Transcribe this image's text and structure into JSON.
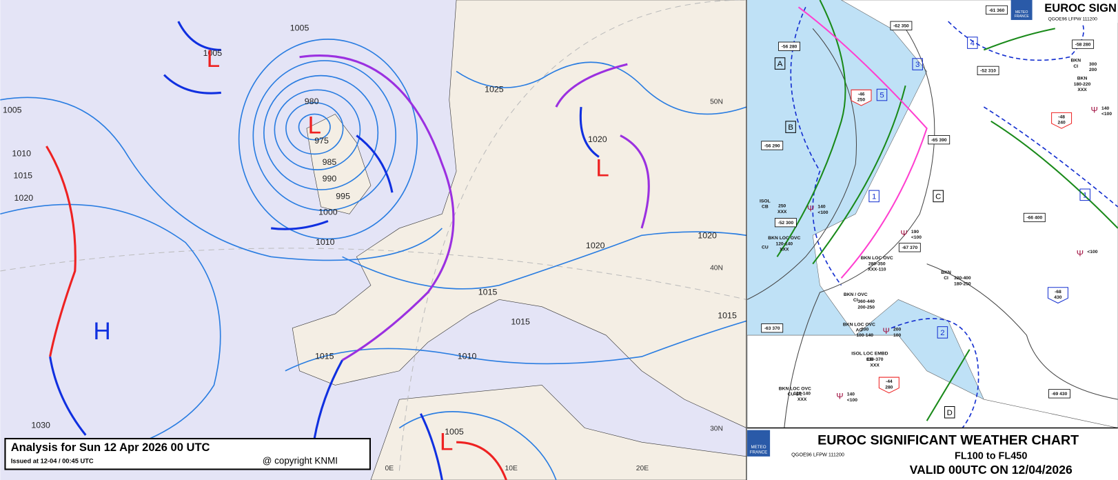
{
  "weather_analysis": {
    "isobar_labels": [
      "1005",
      "1005",
      "980",
      "975",
      "985",
      "990",
      "995",
      "1000",
      "1010",
      "1005",
      "1010",
      "1015",
      "1020",
      "1025",
      "1020",
      "1020",
      "1020",
      "1015",
      "1015",
      "1015",
      "1015",
      "1010",
      "1030",
      "1005"
    ],
    "pressure_centers": [
      "L",
      "L",
      "L",
      "L",
      "H"
    ],
    "graticule_labels": [
      "50N",
      "40N",
      "30N",
      "0E",
      "10E",
      "20E"
    ],
    "caption": {
      "title": "Analysis for Sun 12 Apr 2026 00 UTC",
      "issued": "Issued at 12-04 / 00:45 UTC",
      "copyright": "@ copyright KNMI"
    }
  },
  "sigwx_chart": {
    "header": {
      "title": "EUROC SIGN",
      "code": "QGOE96 LFPW 111200",
      "logo": [
        "METEO",
        "FRANCE"
      ]
    },
    "footer": {
      "title": "EUROC SIGNIFICANT WEATHER CHART",
      "levels": "FL100 to FL450",
      "valid": "VALID 00UTC ON 12/04/2026",
      "code": "QGOE96 LFPW 111200",
      "logo": [
        "METEO",
        "FRANCE"
      ]
    },
    "areas": [
      "A",
      "B",
      "C",
      "D",
      "1",
      "1",
      "2",
      "3",
      "4",
      "5"
    ],
    "tropopause": [
      "-61 360",
      "-62 350",
      "-56 280",
      "-58 280",
      "-52 310",
      "-56 290",
      "-65 390",
      "-52 300",
      "-67 370",
      "-66 400",
      "-63 370",
      "-69 430"
    ],
    "freezing_boxes": [
      [
        "-46",
        "250"
      ],
      [
        "-48",
        "240"
      ],
      [
        "-44",
        "280"
      ],
      [
        "-68",
        "430"
      ]
    ],
    "cloud_labels": [
      [
        "ISOL",
        "CB"
      ],
      [
        "250",
        "XXX"
      ],
      [
        "BKN LOC OVC",
        "120-140",
        "XXX"
      ],
      [
        "CU"
      ],
      [
        "BKN LOC OVC",
        "280-350",
        "XXX-110"
      ],
      [
        "BKN",
        "CI"
      ],
      [
        "320-400",
        "180-250"
      ],
      [
        "BKN / OVC",
        "CI"
      ],
      [
        "360-440",
        "200-250"
      ],
      [
        "BKN LOC OVC",
        "AC"
      ],
      [
        "200",
        "100-140"
      ],
      [
        "ISOL LOC EMBD",
        "CB"
      ],
      [
        "330-370",
        "XXX"
      ],
      [
        "BKN LOC OVC",
        "CU-SC"
      ],
      [
        "120-140",
        "XXX"
      ],
      [
        "BKN",
        "CI"
      ],
      [
        "300",
        "200"
      ],
      [
        "BKN",
        "180-220",
        "XXX"
      ]
    ],
    "icing": [
      [
        "140",
        "<100"
      ],
      [
        "190",
        "<100"
      ],
      [
        "140",
        "<100"
      ],
      [
        "200",
        "100"
      ],
      [
        "140",
        "<100"
      ],
      [
        "<100"
      ]
    ]
  }
}
